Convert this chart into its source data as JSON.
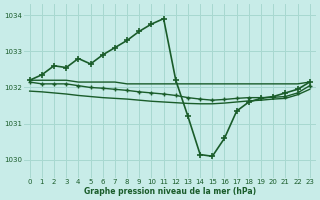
{
  "title": "Graphe pression niveau de la mer (hPa)",
  "bg_color": "#c8ece8",
  "grid_color": "#a8d8d0",
  "line_color": "#1a5c2a",
  "xlim": [
    -0.5,
    23.5
  ],
  "ylim": [
    1029.5,
    1034.3
  ],
  "yticks": [
    1030,
    1031,
    1032,
    1033,
    1034
  ],
  "xticks": [
    0,
    1,
    2,
    3,
    4,
    5,
    6,
    7,
    8,
    9,
    10,
    11,
    12,
    13,
    14,
    15,
    16,
    17,
    18,
    19,
    20,
    21,
    22,
    23
  ],
  "series_main": {
    "x": [
      0,
      1,
      2,
      3,
      4,
      5,
      6,
      7,
      8,
      9,
      10,
      11,
      12,
      13,
      14,
      15,
      16,
      17,
      18,
      19,
      20,
      21,
      22,
      23
    ],
    "y": [
      1032.2,
      1032.35,
      1032.6,
      1032.55,
      1032.8,
      1032.65,
      1032.9,
      1033.1,
      1033.3,
      1033.55,
      1033.75,
      1033.9,
      1032.2,
      1031.2,
      1030.15,
      1030.1,
      1030.6,
      1031.35,
      1031.6,
      1031.7,
      1031.75,
      1031.85,
      1031.95,
      1032.15
    ]
  },
  "series_flat1": {
    "x": [
      0,
      1,
      2,
      3,
      4,
      5,
      6,
      7,
      8,
      9,
      10,
      11,
      12,
      13,
      14,
      15,
      16,
      17,
      18,
      19,
      20,
      21,
      22,
      23
    ],
    "y": [
      1032.2,
      1032.2,
      1032.2,
      1032.2,
      1032.15,
      1032.15,
      1032.15,
      1032.15,
      1032.1,
      1032.1,
      1032.1,
      1032.1,
      1032.1,
      1032.1,
      1032.1,
      1032.1,
      1032.1,
      1032.1,
      1032.1,
      1032.1,
      1032.1,
      1032.1,
      1032.1,
      1032.15
    ]
  },
  "series_flat2": {
    "x": [
      0,
      1,
      2,
      3,
      4,
      5,
      6,
      7,
      8,
      9,
      10,
      11,
      12,
      13,
      14,
      15,
      16,
      17,
      18,
      19,
      20,
      21,
      22,
      23
    ],
    "y": [
      1031.9,
      1031.88,
      1031.85,
      1031.82,
      1031.78,
      1031.75,
      1031.72,
      1031.7,
      1031.68,
      1031.65,
      1031.62,
      1031.6,
      1031.58,
      1031.56,
      1031.55,
      1031.55,
      1031.57,
      1031.6,
      1031.63,
      1031.65,
      1031.68,
      1031.7,
      1031.8,
      1031.95
    ]
  },
  "series_mid": {
    "x": [
      0,
      1,
      2,
      3,
      4,
      5,
      6,
      7,
      8,
      9,
      10,
      11,
      12,
      13,
      14,
      15,
      16,
      17,
      18,
      19,
      20,
      21,
      22,
      23
    ],
    "y": [
      1032.15,
      1032.1,
      1032.1,
      1032.1,
      1032.05,
      1032.0,
      1031.98,
      1031.95,
      1031.92,
      1031.88,
      1031.85,
      1031.82,
      1031.78,
      1031.72,
      1031.68,
      1031.65,
      1031.67,
      1031.7,
      1031.72,
      1031.72,
      1031.73,
      1031.75,
      1031.85,
      1032.05
    ]
  }
}
